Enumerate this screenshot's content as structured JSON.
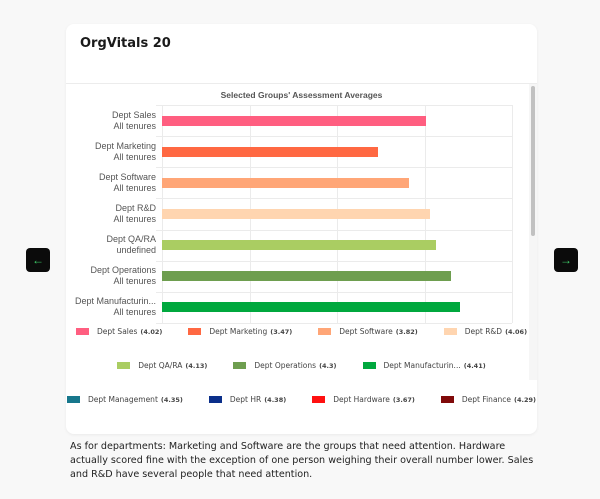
{
  "card": {
    "title": "OrgVitals 20"
  },
  "navigation": {
    "prev_icon": "←",
    "next_icon": "→"
  },
  "caption": "As for departments: Marketing and Software are the groups that need attention. Hardware actually scored fine with the exception of one person weighing their overall number lower. Sales and R&D have several people that need attention.",
  "chart_data": {
    "type": "bar",
    "orientation": "horizontal",
    "title": "Selected Groups' Assessment Averages",
    "xlabel": "",
    "ylabel": "",
    "xlim": [
      1,
      5
    ],
    "grid": true,
    "legend_position": "bottom",
    "categories": [
      {
        "line1": "Dept Sales",
        "line2": "All tenures"
      },
      {
        "line1": "Dept Marketing",
        "line2": "All tenures"
      },
      {
        "line1": "Dept Software",
        "line2": "All tenures"
      },
      {
        "line1": "Dept R&D",
        "line2": "All tenures"
      },
      {
        "line1": "Dept QA/RA",
        "line2": "undefined"
      },
      {
        "line1": "Dept Operations",
        "line2": "All tenures"
      },
      {
        "line1": "Dept Manufacturin...",
        "line2": "All tenures"
      }
    ],
    "values": [
      4.02,
      3.47,
      3.82,
      4.06,
      4.13,
      4.3,
      4.41
    ],
    "bar_colors": [
      "#ff5e80",
      "#ff6842",
      "#ffa677",
      "#ffd5b0",
      "#aacd62",
      "#6e9e4f",
      "#00a83e"
    ],
    "legend": [
      {
        "label": "Dept Sales",
        "value": "(4.02)",
        "color": "#ff5e80"
      },
      {
        "label": "Dept Marketing",
        "value": "(3.47)",
        "color": "#ff6842"
      },
      {
        "label": "Dept Software",
        "value": "(3.82)",
        "color": "#ffa677"
      },
      {
        "label": "Dept R&D",
        "value": "(4.06)",
        "color": "#ffd5b0"
      },
      {
        "label": "Dept QA/RA",
        "value": "(4.13)",
        "color": "#aacd62"
      },
      {
        "label": "Dept Operations",
        "value": "(4.3)",
        "color": "#6e9e4f"
      },
      {
        "label": "Dept Manufacturin...",
        "value": "(4.41)",
        "color": "#00a83e"
      },
      {
        "label": "Dept Management",
        "value": "(4.35)",
        "color": "#17778c"
      },
      {
        "label": "Dept HR",
        "value": "(4.38)",
        "color": "#0b2f8a"
      },
      {
        "label": "Dept Hardware",
        "value": "(3.67)",
        "color": "#ff1010"
      },
      {
        "label": "Dept Finance",
        "value": "(4.29)",
        "color": "#800a0a"
      }
    ]
  }
}
